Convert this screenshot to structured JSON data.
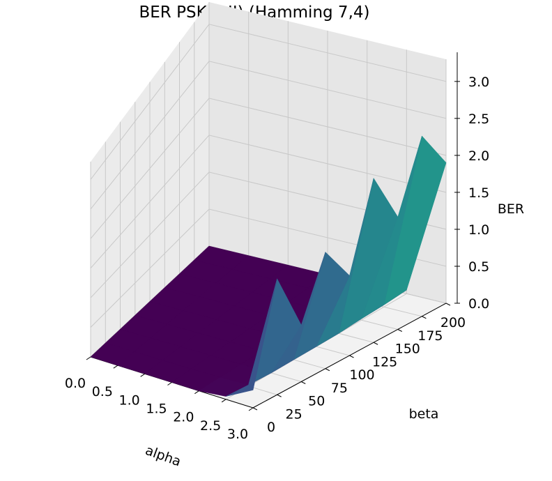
{
  "chart_data": {
    "type": "surface3d",
    "title": "BER PSK (I,II) (Hamming 7,4)",
    "xlabel": "alpha",
    "ylabel": "beta",
    "zlabel": "BER",
    "x_ticks": [
      "0.0",
      "0.5",
      "1.0",
      "1.5",
      "2.0",
      "2.5",
      "3.0"
    ],
    "y_ticks": [
      "0",
      "25",
      "50",
      "75",
      "100",
      "125",
      "150",
      "175",
      "200"
    ],
    "z_ticks": [
      "0.0",
      "0.5",
      "1.0",
      "1.5",
      "2.0",
      "2.5",
      "3.0"
    ],
    "xlim": [
      0,
      3
    ],
    "ylim": [
      0,
      200
    ],
    "zlim": [
      0,
      3.3
    ],
    "grid": true,
    "colormap": "viridis",
    "alpha": [
      0.0,
      0.5,
      1.0,
      1.5,
      2.0,
      2.5,
      3.0
    ],
    "beta": [
      0,
      25,
      50,
      75,
      100,
      125,
      150,
      175,
      200
    ],
    "BER": [
      [
        0,
        0,
        0,
        0,
        0,
        0,
        0,
        0,
        0
      ],
      [
        0,
        0,
        0,
        0,
        0,
        0,
        0,
        0,
        0
      ],
      [
        0,
        0,
        0,
        0,
        0,
        0,
        0,
        0,
        0
      ],
      [
        0,
        0,
        0,
        0,
        0,
        0,
        0,
        0,
        0
      ],
      [
        0,
        0,
        0,
        0,
        0,
        0,
        0,
        0,
        0
      ],
      [
        0.05,
        0.02,
        0,
        0,
        0,
        0,
        0.02,
        0.03,
        0.05
      ],
      [
        0.3,
        1.9,
        0.9,
        1.8,
        1.2,
        2.4,
        1.6,
        2.5,
        1.9
      ]
    ]
  }
}
